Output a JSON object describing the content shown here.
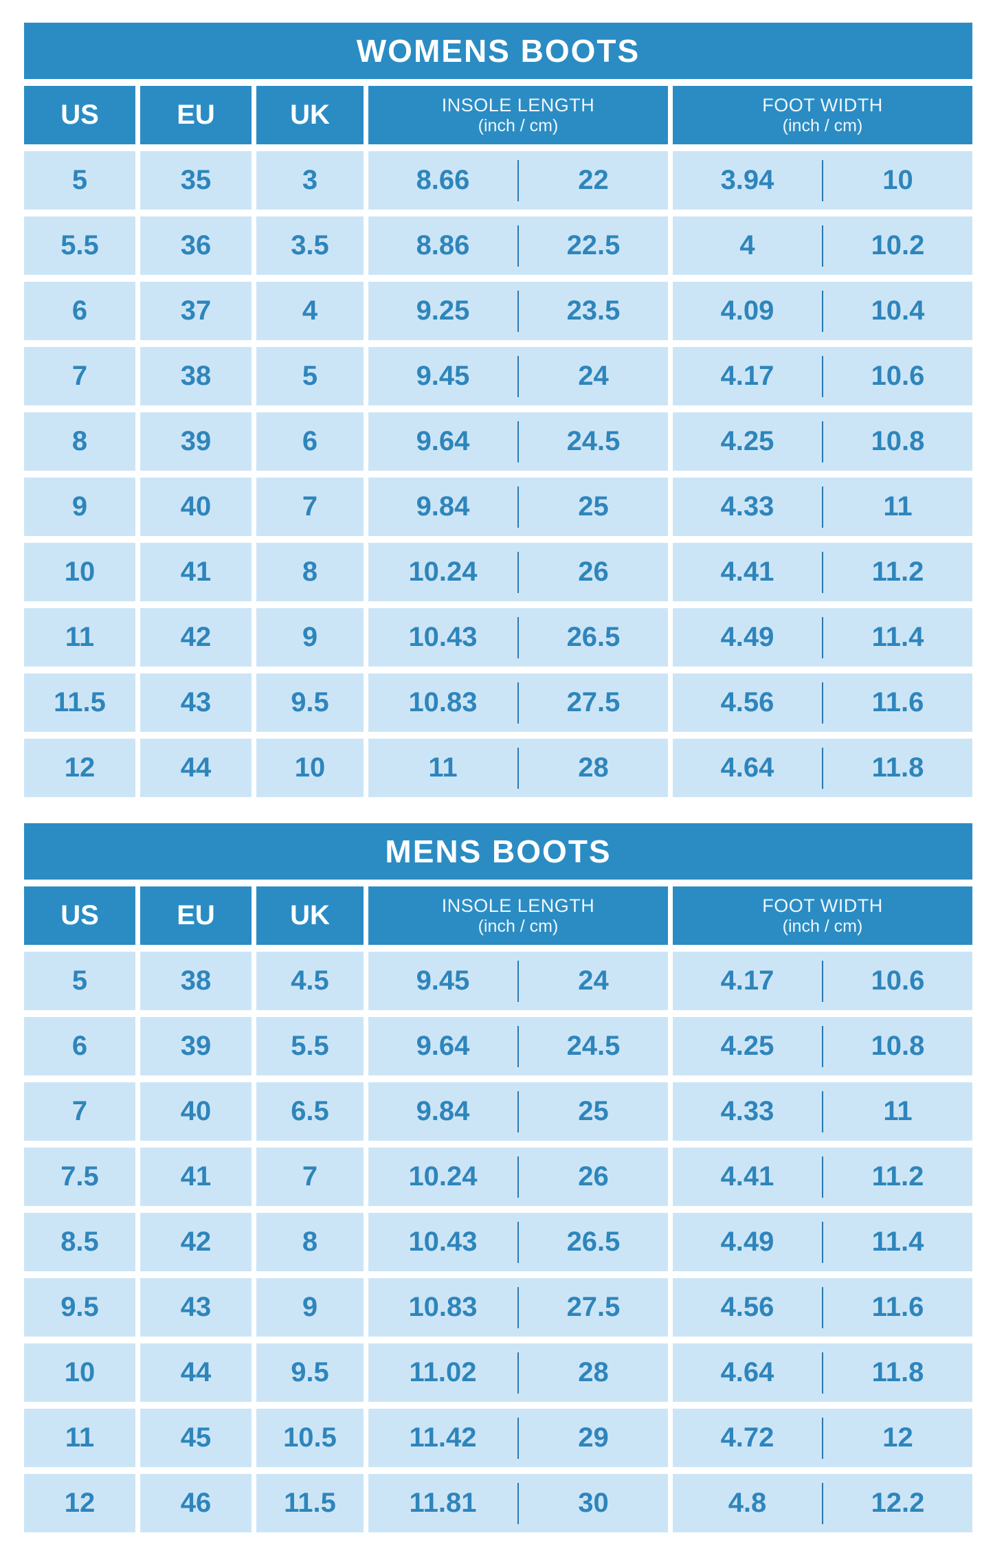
{
  "palette": {
    "title_bar_bg": "#2b8cc4",
    "title_text": "#ffffff",
    "header_bg": "#2b8cc4",
    "header_text": "#eef7fc",
    "cell_bg": "#cce5f6",
    "cell_text": "#2e85bb",
    "divider": "#2979ae",
    "page_bg": "#ffffff"
  },
  "chart_data": [
    {
      "type": "table",
      "title": "WOMENS BOOTS",
      "columns": {
        "us": "US",
        "eu": "EU",
        "uk": "UK",
        "insole_label": "INSOLE LENGTH",
        "insole_unit": "(inch / cm)",
        "foot_label": "FOOT WIDTH",
        "foot_unit": "(inch / cm)"
      },
      "rows": [
        {
          "us": "5",
          "eu": "35",
          "uk": "3",
          "insole_inch": "8.66",
          "insole_cm": "22",
          "foot_inch": "3.94",
          "foot_cm": "10"
        },
        {
          "us": "5.5",
          "eu": "36",
          "uk": "3.5",
          "insole_inch": "8.86",
          "insole_cm": "22.5",
          "foot_inch": "4",
          "foot_cm": "10.2"
        },
        {
          "us": "6",
          "eu": "37",
          "uk": "4",
          "insole_inch": "9.25",
          "insole_cm": "23.5",
          "foot_inch": "4.09",
          "foot_cm": "10.4"
        },
        {
          "us": "7",
          "eu": "38",
          "uk": "5",
          "insole_inch": "9.45",
          "insole_cm": "24",
          "foot_inch": "4.17",
          "foot_cm": "10.6"
        },
        {
          "us": "8",
          "eu": "39",
          "uk": "6",
          "insole_inch": "9.64",
          "insole_cm": "24.5",
          "foot_inch": "4.25",
          "foot_cm": "10.8"
        },
        {
          "us": "9",
          "eu": "40",
          "uk": "7",
          "insole_inch": "9.84",
          "insole_cm": "25",
          "foot_inch": "4.33",
          "foot_cm": "11"
        },
        {
          "us": "10",
          "eu": "41",
          "uk": "8",
          "insole_inch": "10.24",
          "insole_cm": "26",
          "foot_inch": "4.41",
          "foot_cm": "11.2"
        },
        {
          "us": "11",
          "eu": "42",
          "uk": "9",
          "insole_inch": "10.43",
          "insole_cm": "26.5",
          "foot_inch": "4.49",
          "foot_cm": "11.4"
        },
        {
          "us": "11.5",
          "eu": "43",
          "uk": "9.5",
          "insole_inch": "10.83",
          "insole_cm": "27.5",
          "foot_inch": "4.56",
          "foot_cm": "11.6"
        },
        {
          "us": "12",
          "eu": "44",
          "uk": "10",
          "insole_inch": "11",
          "insole_cm": "28",
          "foot_inch": "4.64",
          "foot_cm": "11.8"
        }
      ]
    },
    {
      "type": "table",
      "title": "MENS BOOTS",
      "columns": {
        "us": "US",
        "eu": "EU",
        "uk": "UK",
        "insole_label": "INSOLE LENGTH",
        "insole_unit": "(inch / cm)",
        "foot_label": "FOOT WIDTH",
        "foot_unit": "(inch / cm)"
      },
      "rows": [
        {
          "us": "5",
          "eu": "38",
          "uk": "4.5",
          "insole_inch": "9.45",
          "insole_cm": "24",
          "foot_inch": "4.17",
          "foot_cm": "10.6"
        },
        {
          "us": "6",
          "eu": "39",
          "uk": "5.5",
          "insole_inch": "9.64",
          "insole_cm": "24.5",
          "foot_inch": "4.25",
          "foot_cm": "10.8"
        },
        {
          "us": "7",
          "eu": "40",
          "uk": "6.5",
          "insole_inch": "9.84",
          "insole_cm": "25",
          "foot_inch": "4.33",
          "foot_cm": "11"
        },
        {
          "us": "7.5",
          "eu": "41",
          "uk": "7",
          "insole_inch": "10.24",
          "insole_cm": "26",
          "foot_inch": "4.41",
          "foot_cm": "11.2"
        },
        {
          "us": "8.5",
          "eu": "42",
          "uk": "8",
          "insole_inch": "10.43",
          "insole_cm": "26.5",
          "foot_inch": "4.49",
          "foot_cm": "11.4"
        },
        {
          "us": "9.5",
          "eu": "43",
          "uk": "9",
          "insole_inch": "10.83",
          "insole_cm": "27.5",
          "foot_inch": "4.56",
          "foot_cm": "11.6"
        },
        {
          "us": "10",
          "eu": "44",
          "uk": "9.5",
          "insole_inch": "11.02",
          "insole_cm": "28",
          "foot_inch": "4.64",
          "foot_cm": "11.8"
        },
        {
          "us": "11",
          "eu": "45",
          "uk": "10.5",
          "insole_inch": "11.42",
          "insole_cm": "29",
          "foot_inch": "4.72",
          "foot_cm": "12"
        },
        {
          "us": "12",
          "eu": "46",
          "uk": "11.5",
          "insole_inch": "11.81",
          "insole_cm": "30",
          "foot_inch": "4.8",
          "foot_cm": "12.2"
        }
      ]
    }
  ]
}
